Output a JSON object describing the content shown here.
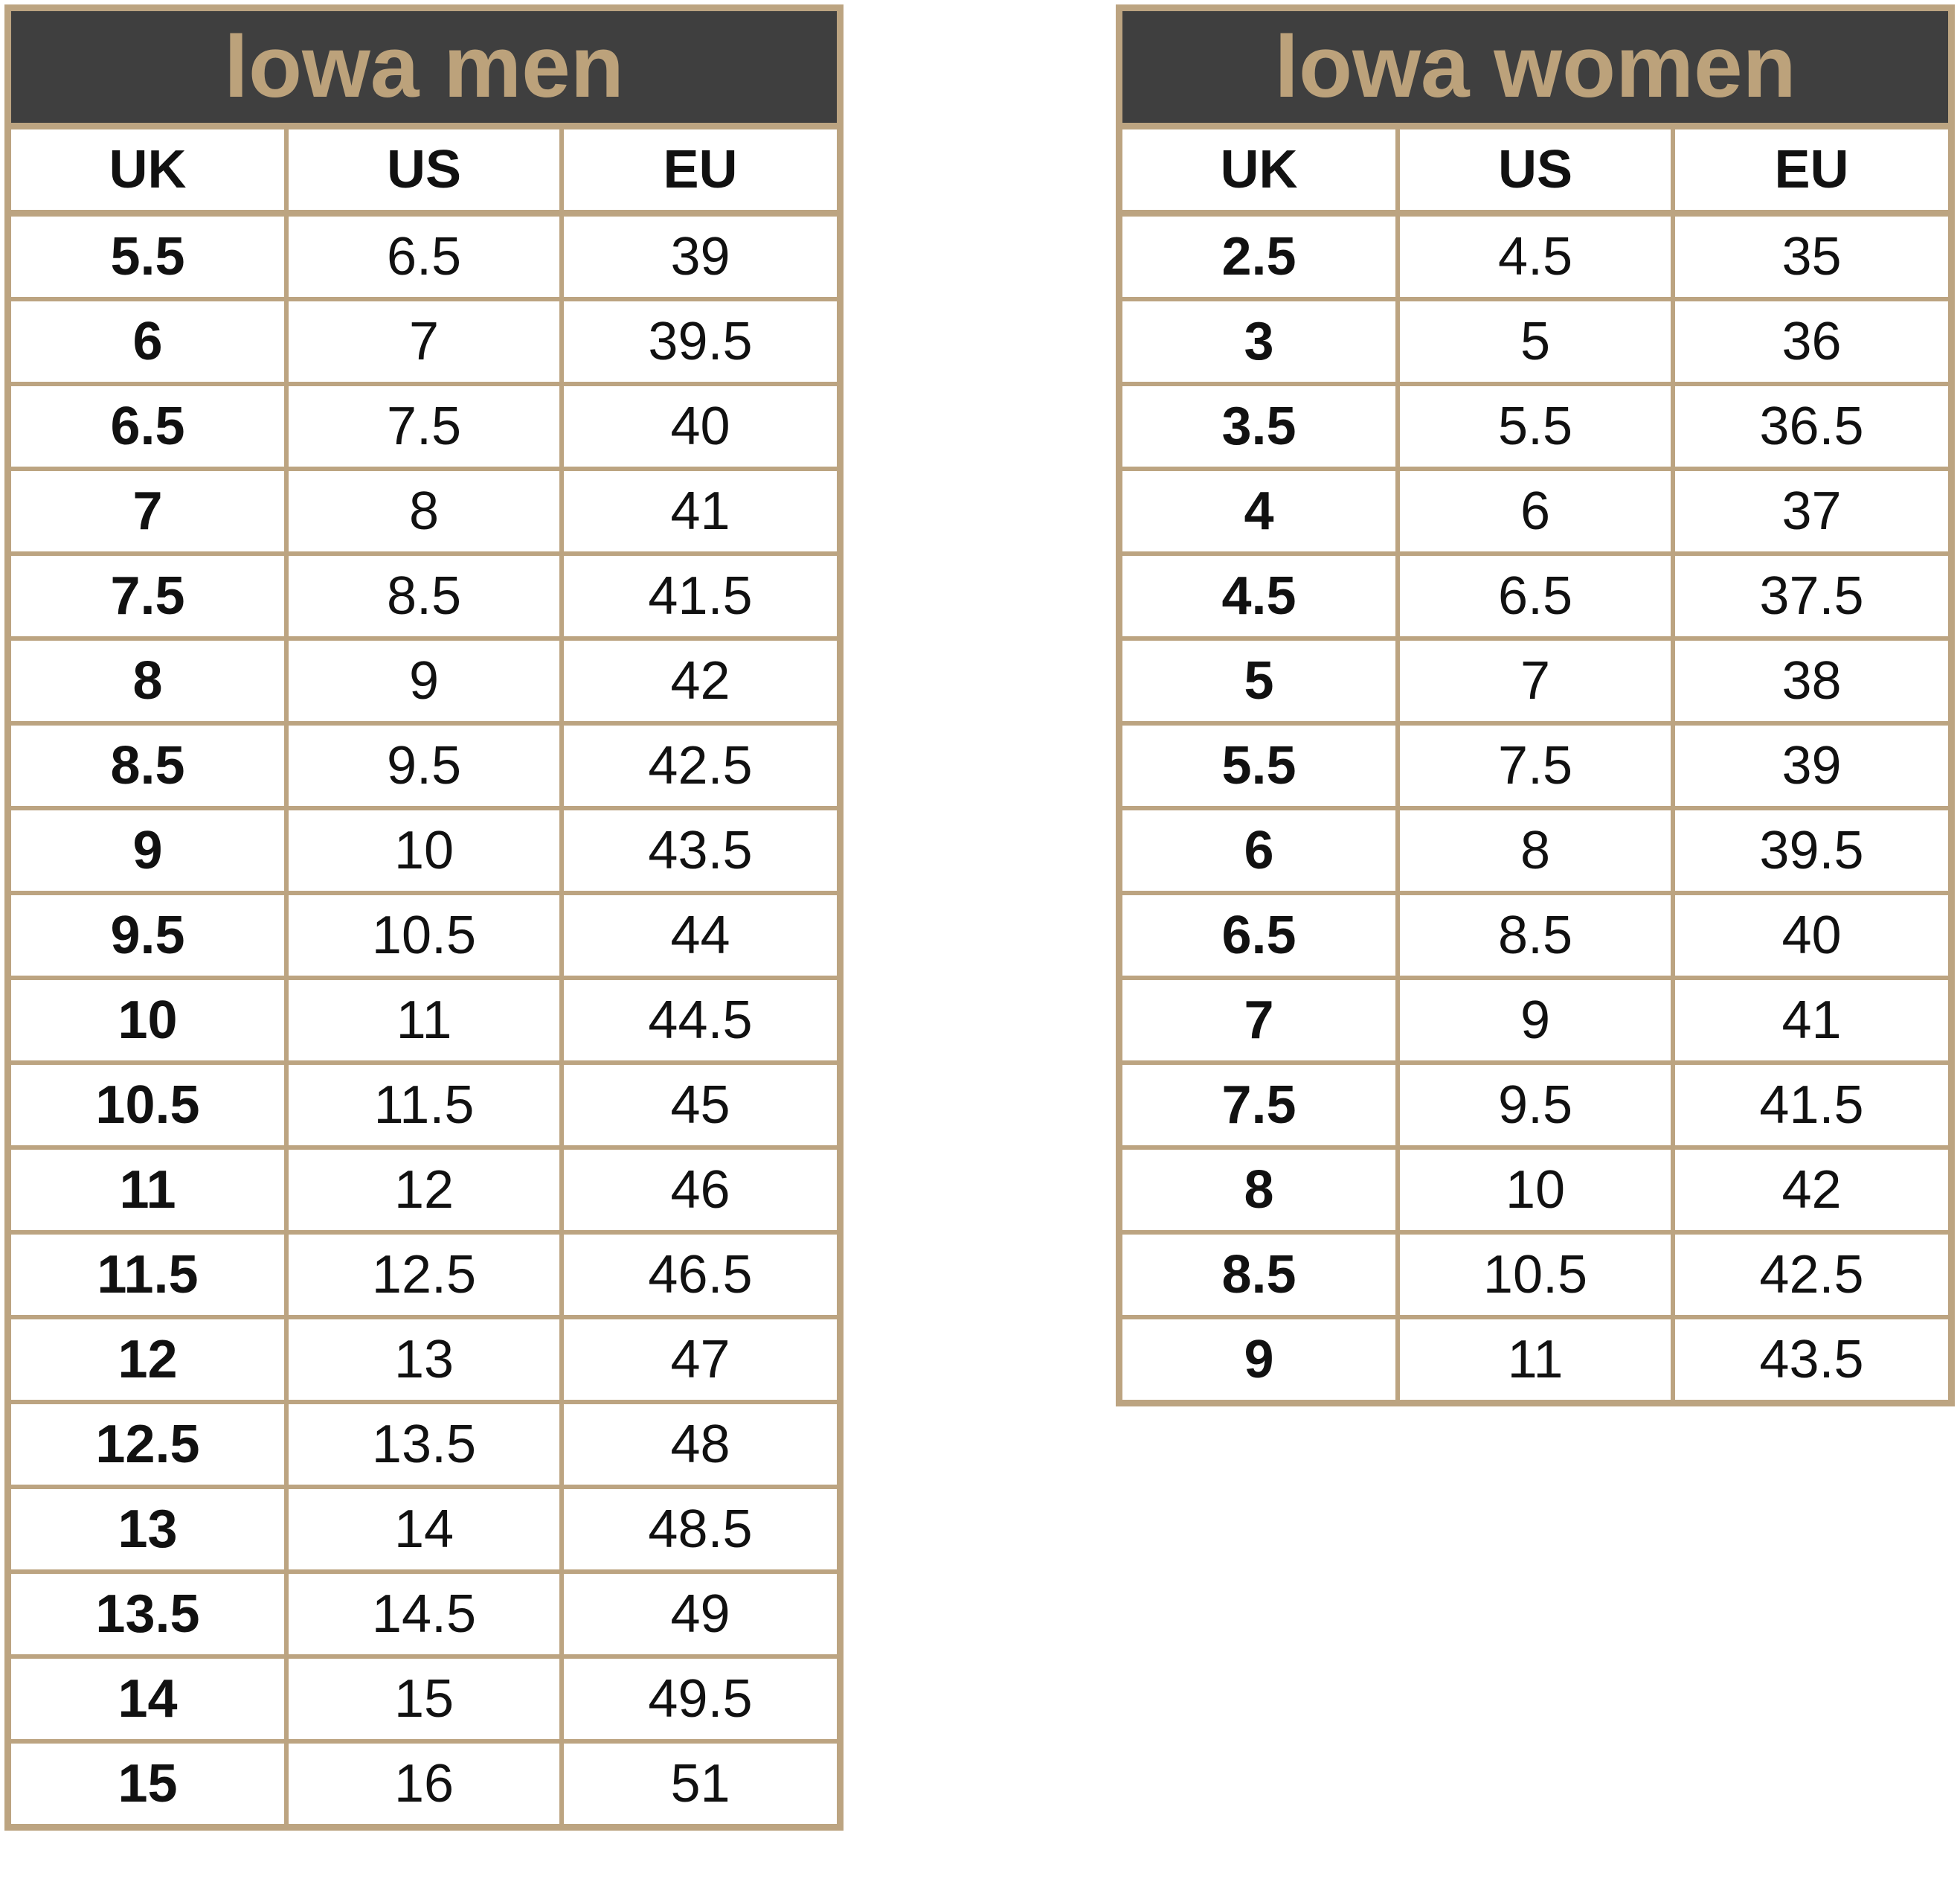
{
  "tables": [
    {
      "title": "lowa men",
      "columns": [
        "UK",
        "US",
        "EU"
      ],
      "rows": [
        [
          "5.5",
          "6.5",
          "39"
        ],
        [
          "6",
          "7",
          "39.5"
        ],
        [
          "6.5",
          "7.5",
          "40"
        ],
        [
          "7",
          "8",
          "41"
        ],
        [
          "7.5",
          "8.5",
          "41.5"
        ],
        [
          "8",
          "9",
          "42"
        ],
        [
          "8.5",
          "9.5",
          "42.5"
        ],
        [
          "9",
          "10",
          "43.5"
        ],
        [
          "9.5",
          "10.5",
          "44"
        ],
        [
          "10",
          "11",
          "44.5"
        ],
        [
          "10.5",
          "11.5",
          "45"
        ],
        [
          "11",
          "12",
          "46"
        ],
        [
          "11.5",
          "12.5",
          "46.5"
        ],
        [
          "12",
          "13",
          "47"
        ],
        [
          "12.5",
          "13.5",
          "48"
        ],
        [
          "13",
          "14",
          "48.5"
        ],
        [
          "13.5",
          "14.5",
          "49"
        ],
        [
          "14",
          "15",
          "49.5"
        ],
        [
          "15",
          "16",
          "51"
        ]
      ]
    },
    {
      "title": "lowa women",
      "columns": [
        "UK",
        "US",
        "EU"
      ],
      "rows": [
        [
          "2.5",
          "4.5",
          "35"
        ],
        [
          "3",
          "5",
          "36"
        ],
        [
          "3.5",
          "5.5",
          "36.5"
        ],
        [
          "4",
          "6",
          "37"
        ],
        [
          "4.5",
          "6.5",
          "37.5"
        ],
        [
          "5",
          "7",
          "38"
        ],
        [
          "5.5",
          "7.5",
          "39"
        ],
        [
          "6",
          "8",
          "39.5"
        ],
        [
          "6.5",
          "8.5",
          "40"
        ],
        [
          "7",
          "9",
          "41"
        ],
        [
          "7.5",
          "9.5",
          "41.5"
        ],
        [
          "8",
          "10",
          "42"
        ],
        [
          "8.5",
          "10.5",
          "42.5"
        ],
        [
          "9",
          "11",
          "43.5"
        ]
      ]
    }
  ]
}
